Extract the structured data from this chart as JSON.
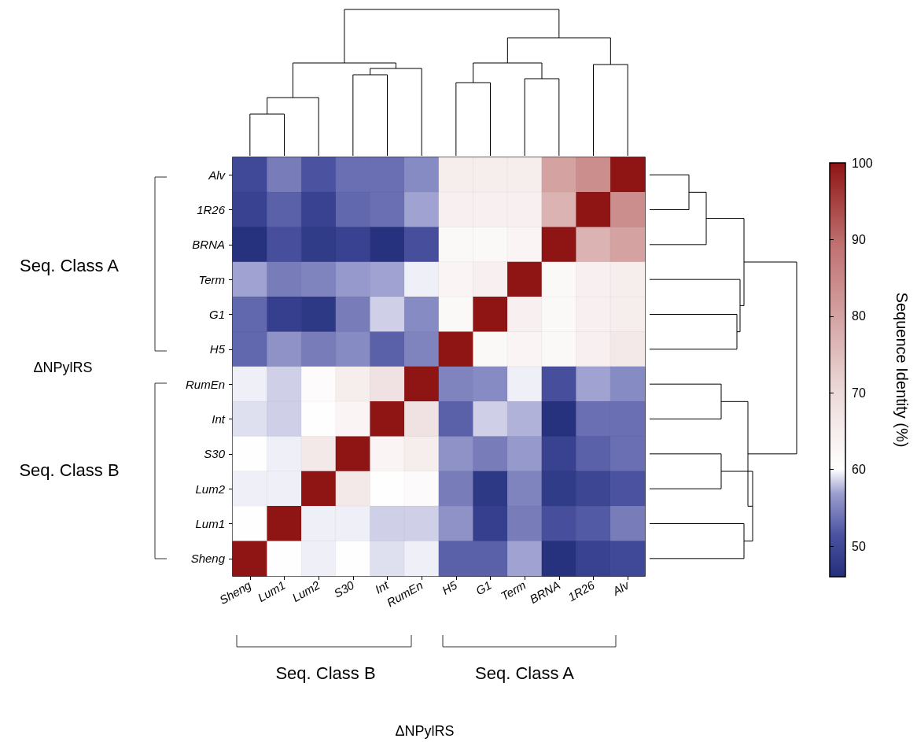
{
  "chart_data": {
    "type": "heatmap",
    "categories": [
      "Sheng",
      "Lum1",
      "Lum2",
      "S30",
      "Int",
      "RumEn",
      "H5",
      "G1",
      "Term",
      "BRNA",
      "1R26",
      "Alv"
    ],
    "y_categories": [
      "Alv",
      "1R26",
      "BRNA",
      "Term",
      "G1",
      "H5",
      "RumEn",
      "Int",
      "S30",
      "Lum2",
      "Lum1",
      "Sheng"
    ],
    "cells": [
      [
        50,
        54.5,
        51.5,
        53.5,
        53.5,
        55.5,
        65,
        65,
        65,
        80,
        84,
        100
      ],
      [
        49,
        52.5,
        49,
        53,
        53.5,
        57,
        64,
        64,
        64,
        77,
        100,
        84
      ],
      [
        46.5,
        51,
        48,
        49,
        46.5,
        51,
        62,
        62,
        63,
        100,
        77,
        80
      ],
      [
        57,
        54.5,
        55,
        56.5,
        57,
        59.5,
        63,
        64,
        100,
        62,
        64,
        65
      ],
      [
        53,
        48.5,
        47.5,
        54.5,
        58.5,
        55.5,
        62,
        100,
        64,
        62,
        64,
        65
      ],
      [
        53,
        56,
        54.5,
        55.5,
        52.5,
        55,
        100,
        62,
        63,
        62,
        64,
        66
      ],
      [
        59.5,
        58.5,
        61,
        65,
        68,
        100,
        55,
        55.5,
        59.5,
        51,
        57,
        55.5
      ],
      [
        59,
        58.5,
        60,
        63,
        100,
        68,
        52.5,
        58.5,
        57.5,
        46.5,
        53.5,
        53.5
      ],
      [
        60,
        59.5,
        66,
        100,
        63,
        65,
        56,
        54.5,
        56.5,
        49,
        52.5,
        53.5
      ],
      [
        59.5,
        59.5,
        100,
        66,
        60,
        61.5,
        54.5,
        47.5,
        55,
        48,
        49.5,
        51.5
      ],
      [
        60,
        100,
        59.5,
        59.5,
        58.5,
        58.5,
        56,
        48.5,
        54.5,
        51,
        52,
        54.5
      ],
      [
        100,
        60,
        59.5,
        60,
        59,
        59.5,
        52.5,
        52.5,
        57,
        46.5,
        49,
        50
      ]
    ],
    "clim": [
      46,
      100
    ],
    "cticks": [
      50,
      60,
      70,
      80,
      90,
      100
    ],
    "clabel": "Sequence Identity (%)",
    "annotations": [
      "Seq. Class A",
      "Seq. Class B",
      "ΔNPylRS",
      "Seq. Class B",
      "Seq. Class A",
      "ΔNPylRS"
    ]
  }
}
